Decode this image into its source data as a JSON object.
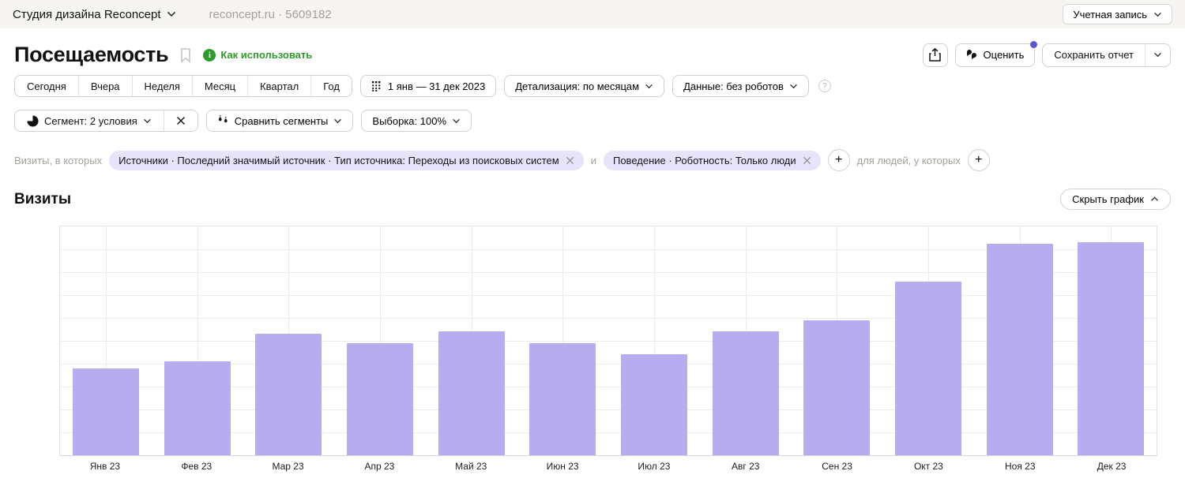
{
  "header": {
    "project_name": "Студия дизайна Reconcept",
    "counter_info": "reconcept.ru  ·  5609182",
    "account_button": "Учетная запись"
  },
  "title": {
    "page_title": "Посещаемость",
    "help_link": "Как использовать"
  },
  "actions": {
    "rate_label": "Оценить",
    "save_report_label": "Сохранить отчет"
  },
  "toolbar": {
    "periods": [
      "Сегодня",
      "Вчера",
      "Неделя",
      "Месяц",
      "Квартал",
      "Год"
    ],
    "date_range": "1 янв — 31 дек 2023",
    "detail_label": "Детализация: по месяцам",
    "data_label": "Данные: без роботов",
    "help_icon": "?"
  },
  "segments": {
    "segment_label": "Сегмент: 2 условия",
    "compare_label": "Сравнить сегменты",
    "sample_label": "Выборка: 100%"
  },
  "filters": {
    "visits_prefix": "Визиты, в которых",
    "and_label": "и",
    "people_prefix": "для людей, у которых",
    "chips": [
      {
        "label": "Источники · Последний значимый источник · Тип источника: Переходы из поисковых систем"
      },
      {
        "label": "Поведение · Роботность: Только люди"
      }
    ],
    "add_symbol": "+"
  },
  "section": {
    "title": "Визиты",
    "hide_chart_label": "Скрыть график"
  },
  "colors": {
    "bar": "#b8acf0",
    "chip_bg": "#e6e3fa",
    "green": "#2f9b2a",
    "badge": "#5957d2",
    "grid": "#ececec"
  },
  "chart_data": {
    "type": "bar",
    "title": "Визиты",
    "categories": [
      "Янв 23",
      "Фев 23",
      "Мар 23",
      "Апр 23",
      "Май 23",
      "Июн 23",
      "Июл 23",
      "Авг 23",
      "Сен 23",
      "Окт 23",
      "Ноя 23",
      "Дек 23"
    ],
    "values": [
      3.8,
      4.1,
      5.3,
      4.9,
      5.4,
      4.9,
      4.4,
      5.4,
      5.9,
      7.6,
      9.25,
      9.3
    ],
    "value_note": "y-axis has no visible tick labels; values estimated in gridline units (10 horizontal intervals)",
    "ylim": [
      0,
      10
    ],
    "xlabel": "",
    "ylabel": "",
    "grid": true,
    "legend": false,
    "bar_color": "#b8acf0"
  }
}
